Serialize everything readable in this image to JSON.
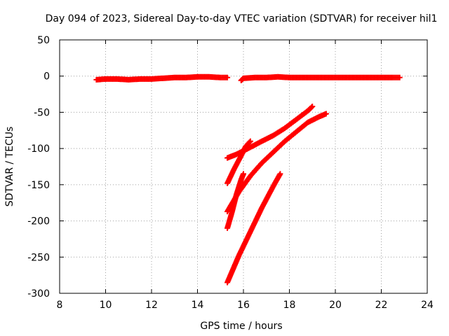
{
  "chart_data": {
    "type": "scatter",
    "title": "Day 094 of 2023, Sidereal Day-to-day VTEC variation (SDTVAR) for receiver hil1",
    "xlabel": "GPS time / hours",
    "ylabel": "SDTVAR / TECUs",
    "xlim": [
      8,
      24
    ],
    "ylim": [
      -300,
      50
    ],
    "xticks": [
      8,
      10,
      12,
      14,
      16,
      18,
      20,
      22,
      24
    ],
    "yticks": [
      50,
      0,
      -50,
      -100,
      -150,
      -200,
      -250,
      -300
    ],
    "grid": true,
    "marker": "plus",
    "color": "#ff0000",
    "series": [
      {
        "values": [
          [
            9.6,
            -5
          ],
          [
            10.0,
            -4
          ],
          [
            10.5,
            -4
          ],
          [
            11.0,
            -5
          ],
          [
            11.5,
            -4
          ],
          [
            12.0,
            -4
          ],
          [
            12.5,
            -3
          ],
          [
            13.0,
            -2
          ],
          [
            13.5,
            -2
          ],
          [
            14.0,
            -1
          ],
          [
            14.5,
            -1
          ],
          [
            15.0,
            -2
          ],
          [
            15.3,
            -2
          ]
        ]
      },
      {
        "values": [
          [
            15.9,
            -6
          ],
          [
            16.0,
            -3
          ],
          [
            16.5,
            -2
          ],
          [
            17.0,
            -2
          ],
          [
            17.5,
            -1
          ],
          [
            18.0,
            -2
          ],
          [
            18.5,
            -2
          ],
          [
            19.0,
            -2
          ],
          [
            19.5,
            -2
          ],
          [
            20.0,
            -2
          ],
          [
            20.5,
            -2
          ],
          [
            21.0,
            -2
          ],
          [
            21.5,
            -2
          ],
          [
            22.0,
            -2
          ],
          [
            22.5,
            -2
          ],
          [
            22.8,
            -2
          ]
        ]
      },
      {
        "values": [
          [
            15.3,
            -113
          ],
          [
            15.7,
            -108
          ],
          [
            16.2,
            -100
          ],
          [
            16.8,
            -90
          ],
          [
            17.3,
            -82
          ],
          [
            17.8,
            -72
          ],
          [
            18.3,
            -60
          ],
          [
            18.8,
            -48
          ],
          [
            19.0,
            -42
          ]
        ]
      },
      {
        "values": [
          [
            15.3,
            -187
          ],
          [
            15.8,
            -160
          ],
          [
            16.3,
            -138
          ],
          [
            16.8,
            -120
          ],
          [
            17.3,
            -105
          ],
          [
            17.8,
            -90
          ],
          [
            18.3,
            -77
          ],
          [
            18.8,
            -64
          ],
          [
            19.3,
            -56
          ],
          [
            19.6,
            -52
          ]
        ]
      },
      {
        "values": [
          [
            15.3,
            -148
          ],
          [
            15.6,
            -128
          ],
          [
            15.9,
            -110
          ],
          [
            16.1,
            -97
          ],
          [
            16.3,
            -90
          ]
        ]
      },
      {
        "values": [
          [
            15.3,
            -210
          ],
          [
            15.5,
            -188
          ],
          [
            15.7,
            -163
          ],
          [
            15.9,
            -143
          ],
          [
            16.0,
            -135
          ]
        ]
      },
      {
        "values": [
          [
            15.3,
            -285
          ],
          [
            15.8,
            -248
          ],
          [
            16.3,
            -215
          ],
          [
            16.8,
            -182
          ],
          [
            17.3,
            -152
          ],
          [
            17.6,
            -135
          ]
        ]
      }
    ]
  }
}
